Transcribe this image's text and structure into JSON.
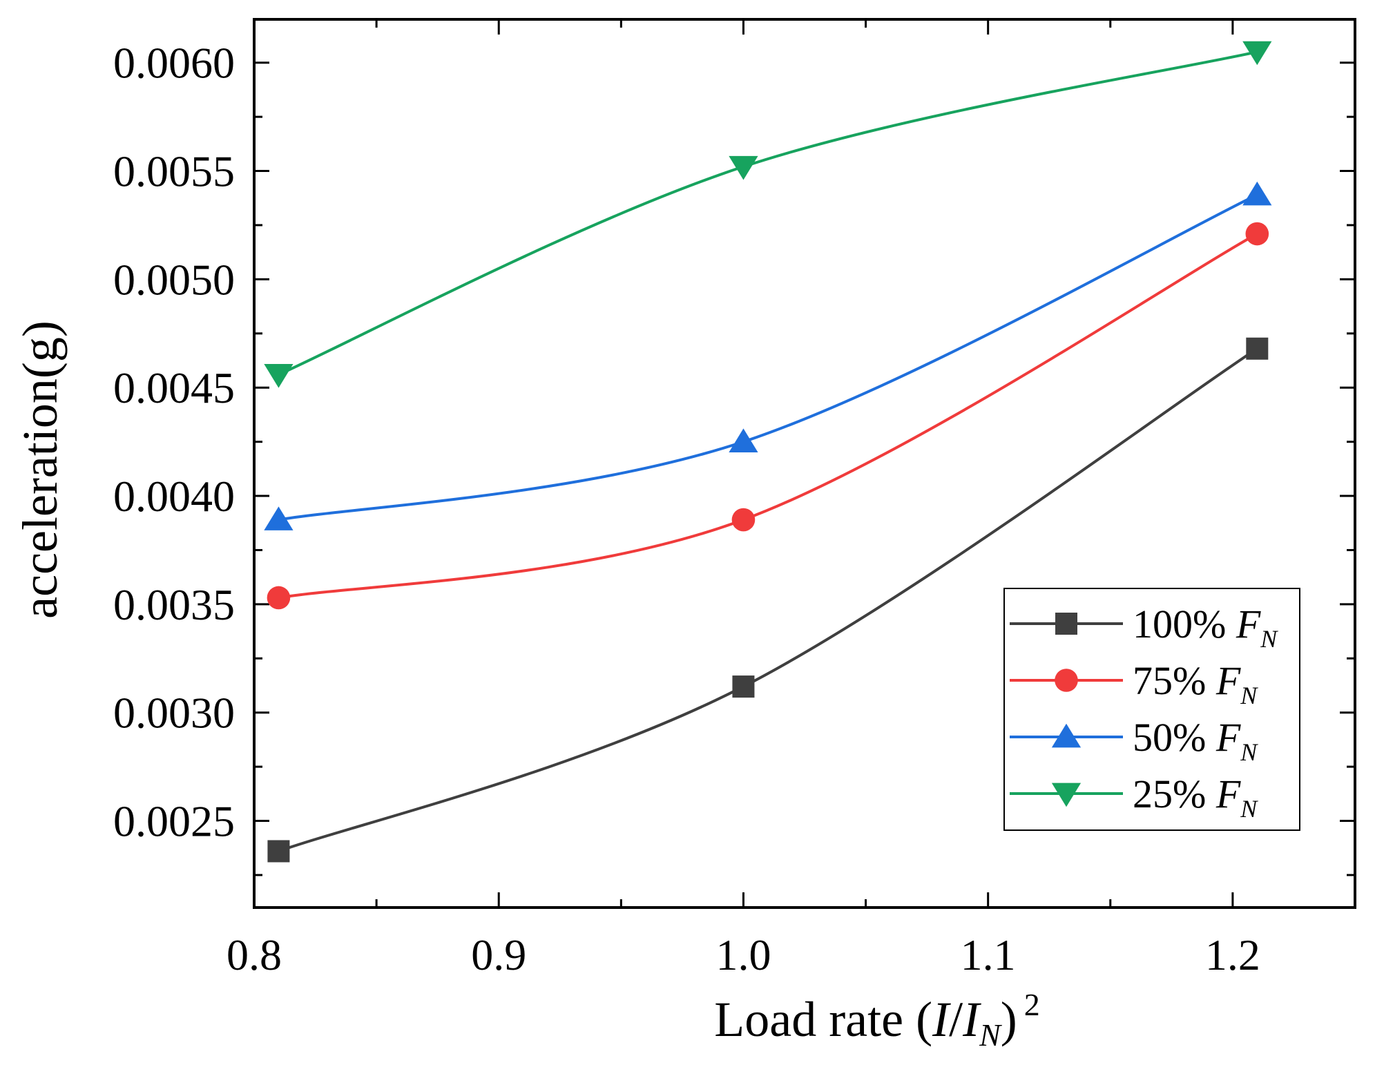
{
  "chart_data": {
    "type": "line",
    "title": "",
    "xlabel": {
      "main": "Load rate",
      "open": "(",
      "var_i": "I",
      "slash": "/",
      "var_in": "I",
      "sub_n": "N",
      "close": ")",
      "sup": "2"
    },
    "ylabel": "acceleration(g)",
    "xlim": [
      0.8,
      1.25
    ],
    "ylim": [
      0.0021,
      0.0062
    ],
    "x_ticks": [
      "0.8",
      "0.9",
      "1.0",
      "1.1",
      "1.2"
    ],
    "x_tick_values": [
      0.8,
      0.9,
      1.0,
      1.1,
      1.2
    ],
    "y_ticks": [
      "0.0025",
      "0.0030",
      "0.0035",
      "0.0040",
      "0.0045",
      "0.0050",
      "0.0055",
      "0.0060"
    ],
    "y_tick_values": [
      0.0025,
      0.003,
      0.0035,
      0.004,
      0.0045,
      0.005,
      0.0055,
      0.006
    ],
    "x": [
      0.81,
      1.0,
      1.21
    ],
    "grid": false,
    "legend_position": "bottom-right",
    "series": [
      {
        "name": "100%",
        "name_var": "F",
        "name_sub": "N",
        "marker": "square",
        "color": "#3f3f3f",
        "values": [
          0.00236,
          0.00312,
          0.00468
        ]
      },
      {
        "name": "75%",
        "name_var": "F",
        "name_sub": "N",
        "marker": "circle",
        "color": "#f03b3b",
        "values": [
          0.00353,
          0.00389,
          0.00521
        ]
      },
      {
        "name": "50%",
        "name_var": "F",
        "name_sub": "N",
        "marker": "triangle-up",
        "color": "#1f6fdc",
        "values": [
          0.00389,
          0.00425,
          0.00539
        ]
      },
      {
        "name": "25%",
        "name_var": "F",
        "name_sub": "N",
        "marker": "triangle-down",
        "color": "#17a35e",
        "values": [
          0.00456,
          0.00552,
          0.00605
        ]
      }
    ]
  }
}
